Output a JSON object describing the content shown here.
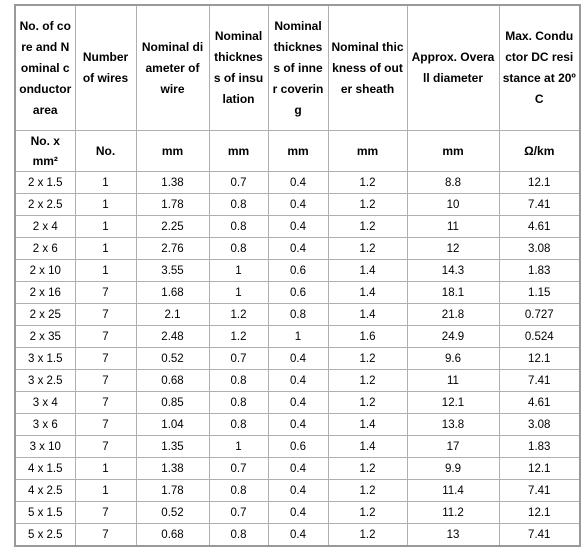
{
  "table": {
    "header": [
      "No. of core and Nominal conductor area",
      "Number of wires",
      "Nominal diameter of wire",
      "Nominal thickness of insulation",
      "Nominal thickness of inner covering",
      "Nominal thickness of outer sheath",
      "Approx. Overall diameter",
      "Max. Conductor DC resistance at 20ºC"
    ],
    "units": [
      "No. x mm²",
      "No.",
      "mm",
      "mm",
      "mm",
      "mm",
      "mm",
      "Ω/km"
    ],
    "rows": [
      [
        "2 x 1.5",
        "1",
        "1.38",
        "0.7",
        "0.4",
        "1.2",
        "8.8",
        "12.1"
      ],
      [
        "2 x 2.5",
        "1",
        "1.78",
        "0.8",
        "0.4",
        "1.2",
        "10",
        "7.41"
      ],
      [
        "2 x 4",
        "1",
        "2.25",
        "0.8",
        "0.4",
        "1.2",
        "11",
        "4.61"
      ],
      [
        "2 x 6",
        "1",
        "2.76",
        "0.8",
        "0.4",
        "1.2",
        "12",
        "3.08"
      ],
      [
        "2 x 10",
        "1",
        "3.55",
        "1",
        "0.6",
        "1.4",
        "14.3",
        "1.83"
      ],
      [
        "2 x 16",
        "7",
        "1.68",
        "1",
        "0.6",
        "1.4",
        "18.1",
        "1.15"
      ],
      [
        "2 x 25",
        "7",
        "2.1",
        "1.2",
        "0.8",
        "1.4",
        "21.8",
        "0.727"
      ],
      [
        "2 x 35",
        "7",
        "2.48",
        "1.2",
        "1",
        "1.6",
        "24.9",
        "0.524"
      ],
      [
        "3 x 1.5",
        "7",
        "0.52",
        "0.7",
        "0.4",
        "1.2",
        "9.6",
        "12.1"
      ],
      [
        "3 x 2.5",
        "7",
        "0.68",
        "0.8",
        "0.4",
        "1.2",
        "11",
        "7.41"
      ],
      [
        "3 x 4",
        "7",
        "0.85",
        "0.8",
        "0.4",
        "1.2",
        "12.1",
        "4.61"
      ],
      [
        "3 x 6",
        "7",
        "1.04",
        "0.8",
        "0.4",
        "1.4",
        "13.8",
        "3.08"
      ],
      [
        "3 x 10",
        "7",
        "1.35",
        "1",
        "0.6",
        "1.4",
        "17",
        "1.83"
      ],
      [
        "4 x 1.5",
        "1",
        "1.38",
        "0.7",
        "0.4",
        "1.2",
        "9.9",
        "12.1"
      ],
      [
        "4 x 2.5",
        "1",
        "1.78",
        "0.8",
        "0.4",
        "1.2",
        "11.4",
        "7.41"
      ],
      [
        "5 x 1.5",
        "7",
        "0.52",
        "0.7",
        "0.4",
        "1.2",
        "11.2",
        "12.1"
      ],
      [
        "5 x 2.5",
        "7",
        "0.68",
        "0.8",
        "0.4",
        "1.2",
        "13",
        "7.41"
      ]
    ]
  }
}
